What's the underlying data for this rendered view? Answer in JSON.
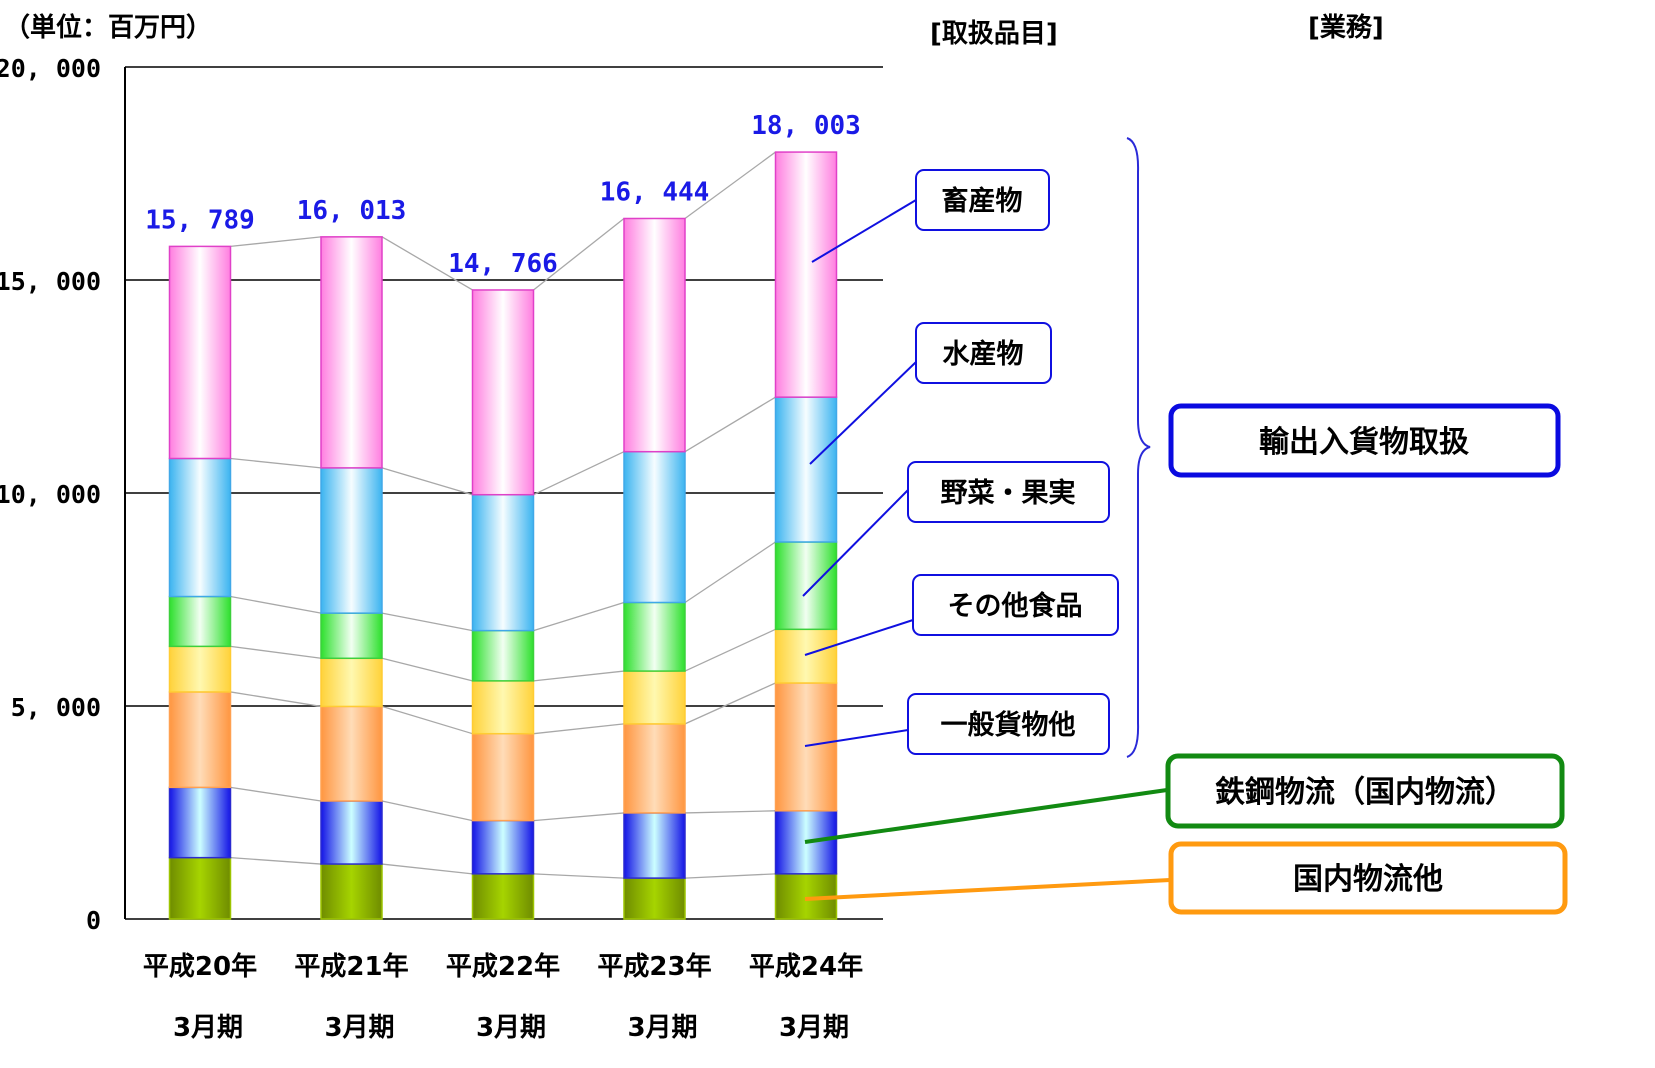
{
  "unit_label": "（単位：百万円）",
  "header_items": "[取扱品目]",
  "header_business": "[業務]",
  "business_box": "輸出入貨物取扱",
  "colors": {
    "total_label": "#1a1ae6",
    "callout_border": "#1010e0",
    "business_border": "#0a0ae0",
    "steel_border": "#128a12",
    "domestic_border": "#ff9a10",
    "connector": "#a8a8a8"
  },
  "chart_data": {
    "type": "bar",
    "stacked": true,
    "title": "",
    "xlabel": "",
    "ylabel": "（単位：百万円）",
    "ylim": [
      0,
      20000
    ],
    "grid": true,
    "categories": [
      {
        "year": "平成20年",
        "period": "3月期"
      },
      {
        "year": "平成21年",
        "period": "3月期"
      },
      {
        "year": "平成22年",
        "period": "3月期"
      },
      {
        "year": "平成23年",
        "period": "3月期"
      },
      {
        "year": "平成24年",
        "period": "3月期"
      }
    ],
    "yticks": [
      {
        "value": 0,
        "label": "0"
      },
      {
        "value": 5000,
        "label": "5, 000"
      },
      {
        "value": 10000,
        "label": "10, 000"
      },
      {
        "value": 15000,
        "label": "15, 000"
      },
      {
        "value": 20000,
        "label": "20, 000"
      }
    ],
    "series": [
      {
        "name": "国内物流他",
        "values": [
          1440,
          1290,
          1060,
          960,
          1060
        ],
        "edge": "#6f8c00",
        "center": "#a6d400",
        "stroke": "#9cc400"
      },
      {
        "name": "鉄鋼物流（国内物流）",
        "values": [
          1650,
          1480,
          1250,
          1530,
          1480
        ],
        "edge": "#1414e6",
        "center": "#ccffff",
        "stroke": "#2a2ad0"
      },
      {
        "name": "一般貨物他",
        "values": [
          2240,
          2220,
          2040,
          2090,
          3000
        ],
        "edge": "#ff9640",
        "center": "#ffdcb8",
        "stroke": "#ffa050"
      },
      {
        "name": "その他食品",
        "values": [
          1070,
          1130,
          1240,
          1240,
          1260
        ],
        "edge": "#ffd23a",
        "center": "#fff8b0",
        "stroke": "#ffcc33"
      },
      {
        "name": "野菜・果実",
        "values": [
          1170,
          1060,
          1180,
          1610,
          2050
        ],
        "edge": "#2ee02e",
        "center": "#f2fff2",
        "stroke": "#3cd03c"
      },
      {
        "name": "水産物",
        "values": [
          3240,
          3410,
          3190,
          3540,
          3400
        ],
        "edge": "#3cb4f0",
        "center": "#f6fdff",
        "stroke": "#40a8e8"
      },
      {
        "name": "畜産物",
        "values": [
          4979,
          5423,
          4806,
          5474,
          5753
        ],
        "edge": "#ff7ee0",
        "center": "#ffffff",
        "stroke": "#e040c8"
      }
    ],
    "totals": [
      {
        "value": 15789,
        "label": "15, 789"
      },
      {
        "value": 16013,
        "label": "16, 013"
      },
      {
        "value": 14766,
        "label": "14, 766"
      },
      {
        "value": 16444,
        "label": "16, 444"
      },
      {
        "value": 18003,
        "label": "18, 003"
      }
    ]
  }
}
